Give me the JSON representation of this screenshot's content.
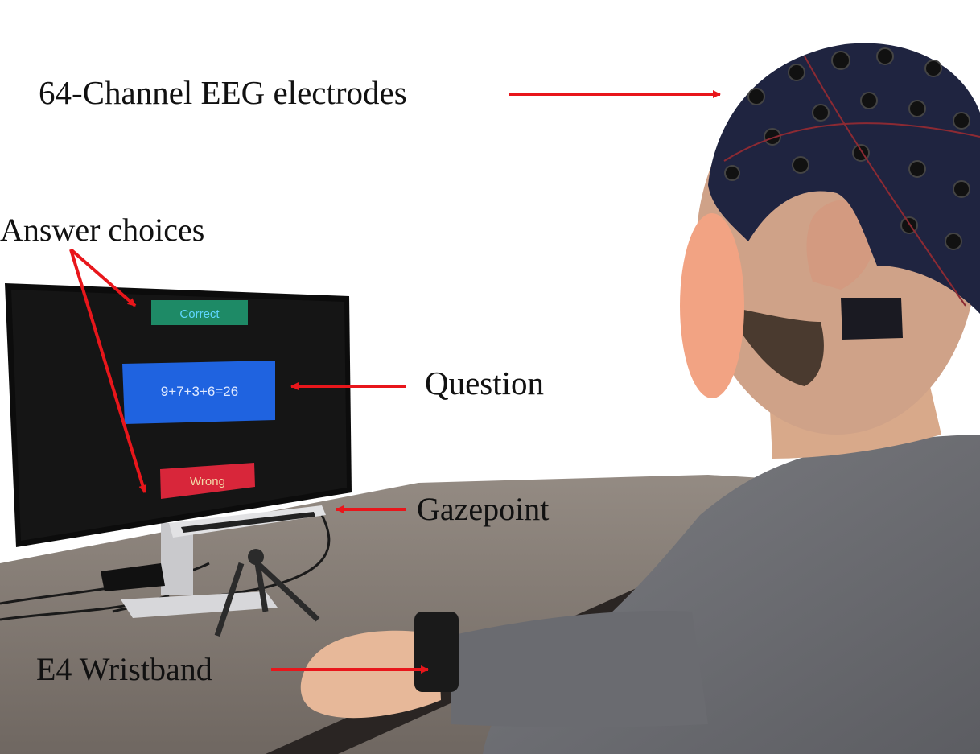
{
  "labels": {
    "eeg": "64-Channel EEG electrodes",
    "answer_choices": "Answer choices",
    "question": "Question",
    "gazepoint": "Gazepoint",
    "wristband": "E4 Wristband"
  },
  "screen": {
    "correct": "Correct",
    "question_text": "9+7+3+6=26",
    "wrong": "Wrong"
  },
  "colors": {
    "arrow": "#e8161b",
    "correct_button": "#1e8a66",
    "question_box": "#1f63e0",
    "wrong_button": "#d8263a",
    "monitor_screen": "#151515",
    "face_mask": "#f2a383",
    "cap": "#1f2440",
    "shirt": "#6e6f74",
    "table": "#7b736c"
  }
}
